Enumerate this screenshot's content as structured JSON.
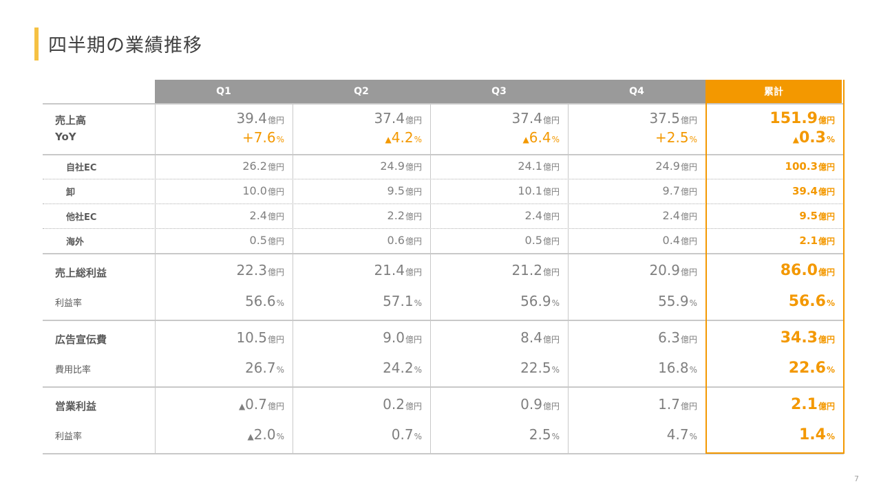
{
  "title": "四半期の業績推移",
  "page_number": "7",
  "headers": [
    "Q1",
    "Q2",
    "Q3",
    "Q4",
    "累計"
  ],
  "rows": [
    {
      "key": "sales",
      "label": "売上高",
      "unit": "億円",
      "values": [
        "39.4",
        "37.4",
        "37.4",
        "37.5",
        "151.9"
      ]
    },
    {
      "key": "yoy",
      "label": "YoY",
      "unit": "%",
      "values": [
        {
          "sign": "+",
          "value": "7.6"
        },
        {
          "sign": "▲",
          "value": "4.2"
        },
        {
          "sign": "▲",
          "value": "6.4"
        },
        {
          "sign": "+",
          "value": "2.5"
        },
        {
          "sign": "▲",
          "value": "0.3"
        }
      ]
    },
    {
      "key": "own_ec",
      "label": "自社EC",
      "unit": "億円",
      "values": [
        "26.2",
        "24.9",
        "24.1",
        "24.9",
        "100.3"
      ]
    },
    {
      "key": "wholesale",
      "label": "卸",
      "unit": "億円",
      "values": [
        "10.0",
        "9.5",
        "10.1",
        "9.7",
        "39.4"
      ]
    },
    {
      "key": "other_ec",
      "label": "他社EC",
      "unit": "億円",
      "values": [
        "2.4",
        "2.2",
        "2.4",
        "2.4",
        "9.5"
      ]
    },
    {
      "key": "overseas",
      "label": "海外",
      "unit": "億円",
      "values": [
        "0.5",
        "0.6",
        "0.5",
        "0.4",
        "2.1"
      ]
    },
    {
      "key": "gross_profit",
      "label": "売上総利益",
      "unit": "億円",
      "values": [
        "22.3",
        "21.4",
        "21.2",
        "20.9",
        "86.0"
      ]
    },
    {
      "key": "gross_margin",
      "label": "利益率",
      "unit": "%",
      "values": [
        "56.6",
        "57.1",
        "56.9",
        "55.9",
        "56.6"
      ]
    },
    {
      "key": "ad_cost",
      "label": "広告宣伝費",
      "unit": "億円",
      "values": [
        "10.5",
        "9.0",
        "8.4",
        "6.3",
        "34.3"
      ]
    },
    {
      "key": "ad_ratio",
      "label": "費用比率",
      "unit": "%",
      "values": [
        "26.7",
        "24.2",
        "22.5",
        "16.8",
        "22.6"
      ]
    },
    {
      "key": "op_profit",
      "label": "営業利益",
      "unit": "億円",
      "values": [
        {
          "sign": "▲",
          "value": "0.7"
        },
        {
          "sign": "",
          "value": "0.2"
        },
        {
          "sign": "",
          "value": "0.9"
        },
        {
          "sign": "",
          "value": "1.7"
        },
        {
          "sign": "",
          "value": "2.1"
        }
      ]
    },
    {
      "key": "op_margin",
      "label": "利益率",
      "unit": "%",
      "values": [
        {
          "sign": "▲",
          "value": "2.0"
        },
        {
          "sign": "",
          "value": "0.7"
        },
        {
          "sign": "",
          "value": "2.5"
        },
        {
          "sign": "",
          "value": "4.7"
        },
        {
          "sign": "",
          "value": "1.4"
        }
      ]
    }
  ]
}
